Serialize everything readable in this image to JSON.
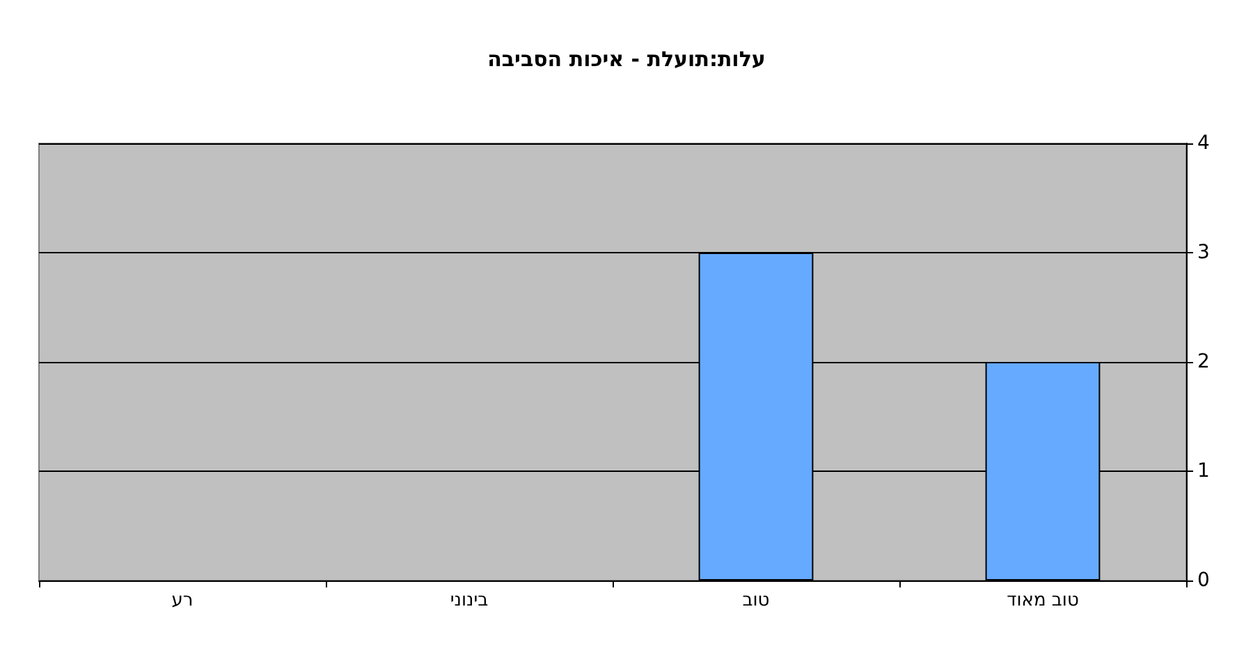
{
  "chart_data": {
    "type": "bar",
    "title": "עלות:תועלת - איכות הסביבה",
    "categories": [
      "רע",
      "בינוני",
      "טוב",
      "טוב מאוד"
    ],
    "values": [
      0,
      0,
      3,
      2
    ],
    "color": "#66aaff",
    "ylim": [
      0,
      4
    ],
    "yticks": [
      0,
      1,
      2,
      3,
      4
    ],
    "grid": "y"
  }
}
